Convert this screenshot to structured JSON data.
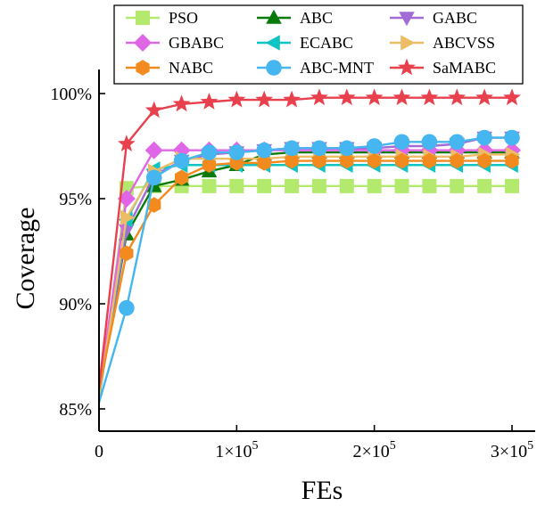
{
  "chart_data": {
    "type": "line",
    "xlabel": "FEs",
    "ylabel": "Coverage",
    "xlim": [
      0,
      310000
    ],
    "ylim": [
      84.0,
      101.2
    ],
    "x_ticks": [
      0,
      100000,
      200000,
      300000
    ],
    "x_tick_labels": [
      {
        "base": "0",
        "exp": ""
      },
      {
        "base": "1×10",
        "exp": "5"
      },
      {
        "base": "2×10",
        "exp": "5"
      },
      {
        "base": "3×10",
        "exp": "5"
      }
    ],
    "y_ticks": [
      85,
      90,
      95,
      100
    ],
    "y_tick_labels": [
      "85%",
      "90%",
      "95%",
      "100%"
    ],
    "legend_position": "top",
    "x": [
      0,
      20000,
      40000,
      60000,
      80000,
      100000,
      120000,
      140000,
      160000,
      180000,
      200000,
      220000,
      240000,
      260000,
      280000,
      300000
    ],
    "series": [
      {
        "name": "PSO",
        "color": "#b3ea6e",
        "marker": "square",
        "values": [
          85.4,
          95.5,
          95.6,
          95.6,
          95.6,
          95.6,
          95.6,
          95.6,
          95.6,
          95.6,
          95.6,
          95.6,
          95.6,
          95.6,
          95.6,
          95.6
        ]
      },
      {
        "name": "ABC",
        "color": "#0a7a0a",
        "marker": "triangle-up",
        "values": [
          85.7,
          93.3,
          95.6,
          95.9,
          96.3,
          96.6,
          97.1,
          97.2,
          97.2,
          97.2,
          97.2,
          97.2,
          97.2,
          97.2,
          97.2,
          97.2
        ]
      },
      {
        "name": "GABC",
        "color": "#a36bd6",
        "marker": "triangle-down",
        "values": [
          85.6,
          93.5,
          96.1,
          96.8,
          97.1,
          97.2,
          97.3,
          97.4,
          97.4,
          97.4,
          97.4,
          97.5,
          97.5,
          97.6,
          97.9,
          97.9
        ]
      },
      {
        "name": "GBABC",
        "color": "#e066e8",
        "marker": "diamond",
        "values": [
          85.8,
          95.0,
          97.3,
          97.3,
          97.3,
          97.3,
          97.3,
          97.3,
          97.3,
          97.3,
          97.3,
          97.3,
          97.3,
          97.3,
          97.3,
          97.3
        ]
      },
      {
        "name": "ECABC",
        "color": "#10c4c4",
        "marker": "triangle-left",
        "values": [
          85.5,
          94.0,
          96.4,
          96.6,
          96.6,
          96.6,
          96.6,
          96.6,
          96.6,
          96.6,
          96.6,
          96.6,
          96.6,
          96.6,
          96.6,
          96.6
        ]
      },
      {
        "name": "ABCVSS",
        "color": "#ecbd66",
        "marker": "triangle-right",
        "values": [
          85.6,
          94.1,
          96.3,
          96.9,
          96.9,
          96.9,
          96.9,
          97.0,
          97.0,
          97.0,
          97.0,
          97.0,
          97.0,
          97.0,
          97.1,
          97.1
        ]
      },
      {
        "name": "NABC",
        "color": "#f28a1e",
        "marker": "hexagon",
        "values": [
          85.9,
          92.4,
          94.7,
          96.0,
          96.6,
          96.7,
          96.7,
          96.8,
          96.8,
          96.8,
          96.8,
          96.8,
          96.8,
          96.8,
          96.8,
          96.8
        ]
      },
      {
        "name": "ABC-MNT",
        "color": "#45b6ef",
        "marker": "circle",
        "values": [
          85.3,
          89.8,
          96.0,
          96.8,
          97.2,
          97.2,
          97.3,
          97.4,
          97.4,
          97.4,
          97.5,
          97.7,
          97.7,
          97.7,
          97.9,
          97.9
        ]
      },
      {
        "name": "SaMABC",
        "color": "#e8404d",
        "marker": "star",
        "values": [
          86.0,
          97.6,
          99.2,
          99.5,
          99.6,
          99.7,
          99.7,
          99.7,
          99.8,
          99.8,
          99.8,
          99.8,
          99.8,
          99.8,
          99.8,
          99.8
        ]
      }
    ]
  }
}
